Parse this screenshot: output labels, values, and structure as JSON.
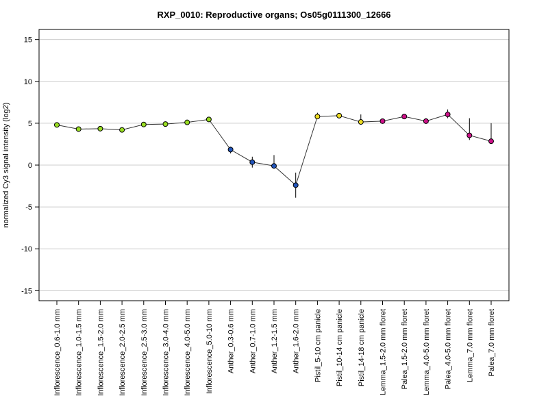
{
  "chart_data": {
    "type": "line",
    "title": "RXP_0010: Reproductive organs; Os05g0111300_12666",
    "xlabel": "",
    "ylabel": "normalized Cy3 signal intensity (log2)",
    "ylim": [
      -16.2,
      16.2
    ],
    "yticks": [
      15,
      10,
      5,
      0,
      -5,
      -10,
      -15
    ],
    "grid": true,
    "categories": [
      "Inflorescence_0.6-1.0 mm",
      "Inflorescence_1.0-1.5 mm",
      "Inflorescence_1.5-2.0 mm",
      "Inflorescence_2.0-2.5 mm",
      "Inflorescence_2.5-3.0 mm",
      "Inflorescence_3.0-4.0 mm",
      "Inflorescence_4.0-5.0 mm",
      "Inflorescence_5.0-10 mm",
      "Anther_0.3-0.6 mm",
      "Anther_0.7-1.0 mm",
      "Anther_1.2-1.5 mm",
      "Anther_1.6-2.0 mm",
      "Pistil_5-10 cm panicle",
      "Pistil_10-14 cm panicle",
      "Pistil_14-18 cm panicle",
      "Lemma_1.5-2.0 mm floret",
      "Palea_1.5-2.0 mm floret",
      "Lemma_4.0-5.0 mm floret",
      "Palea_4.0-5.0 mm floret",
      "Lemma_7.0 mm floret",
      "Palea_7.0 mm floret"
    ],
    "values": [
      4.8,
      4.3,
      4.35,
      4.2,
      4.85,
      4.9,
      5.1,
      5.45,
      1.85,
      0.35,
      -0.1,
      -2.4,
      5.8,
      5.9,
      5.15,
      5.25,
      5.8,
      5.25,
      6.05,
      3.55,
      2.85
    ],
    "err_low": [
      4.7,
      4.2,
      4.25,
      4.1,
      4.65,
      4.8,
      5.0,
      5.35,
      1.4,
      -0.3,
      -0.4,
      -3.9,
      5.55,
      5.8,
      4.9,
      5.1,
      5.55,
      4.9,
      5.6,
      3.0,
      2.7
    ],
    "err_high": [
      4.95,
      4.4,
      4.45,
      4.3,
      5.0,
      5.0,
      5.25,
      5.6,
      2.2,
      1.0,
      1.2,
      -0.9,
      6.25,
      6.05,
      6.05,
      5.45,
      6.1,
      5.6,
      6.65,
      5.6,
      5.0
    ],
    "point_colors": [
      "#99dd22",
      "#99dd22",
      "#99dd22",
      "#99dd22",
      "#99dd22",
      "#99dd22",
      "#99dd22",
      "#99dd22",
      "#2255bb",
      "#2255bb",
      "#2255bb",
      "#2255bb",
      "#eedd22",
      "#eedd22",
      "#eedd22",
      "#cc1188",
      "#cc1188",
      "#cc1188",
      "#cc1188",
      "#cc1188",
      "#cc1188"
    ]
  }
}
